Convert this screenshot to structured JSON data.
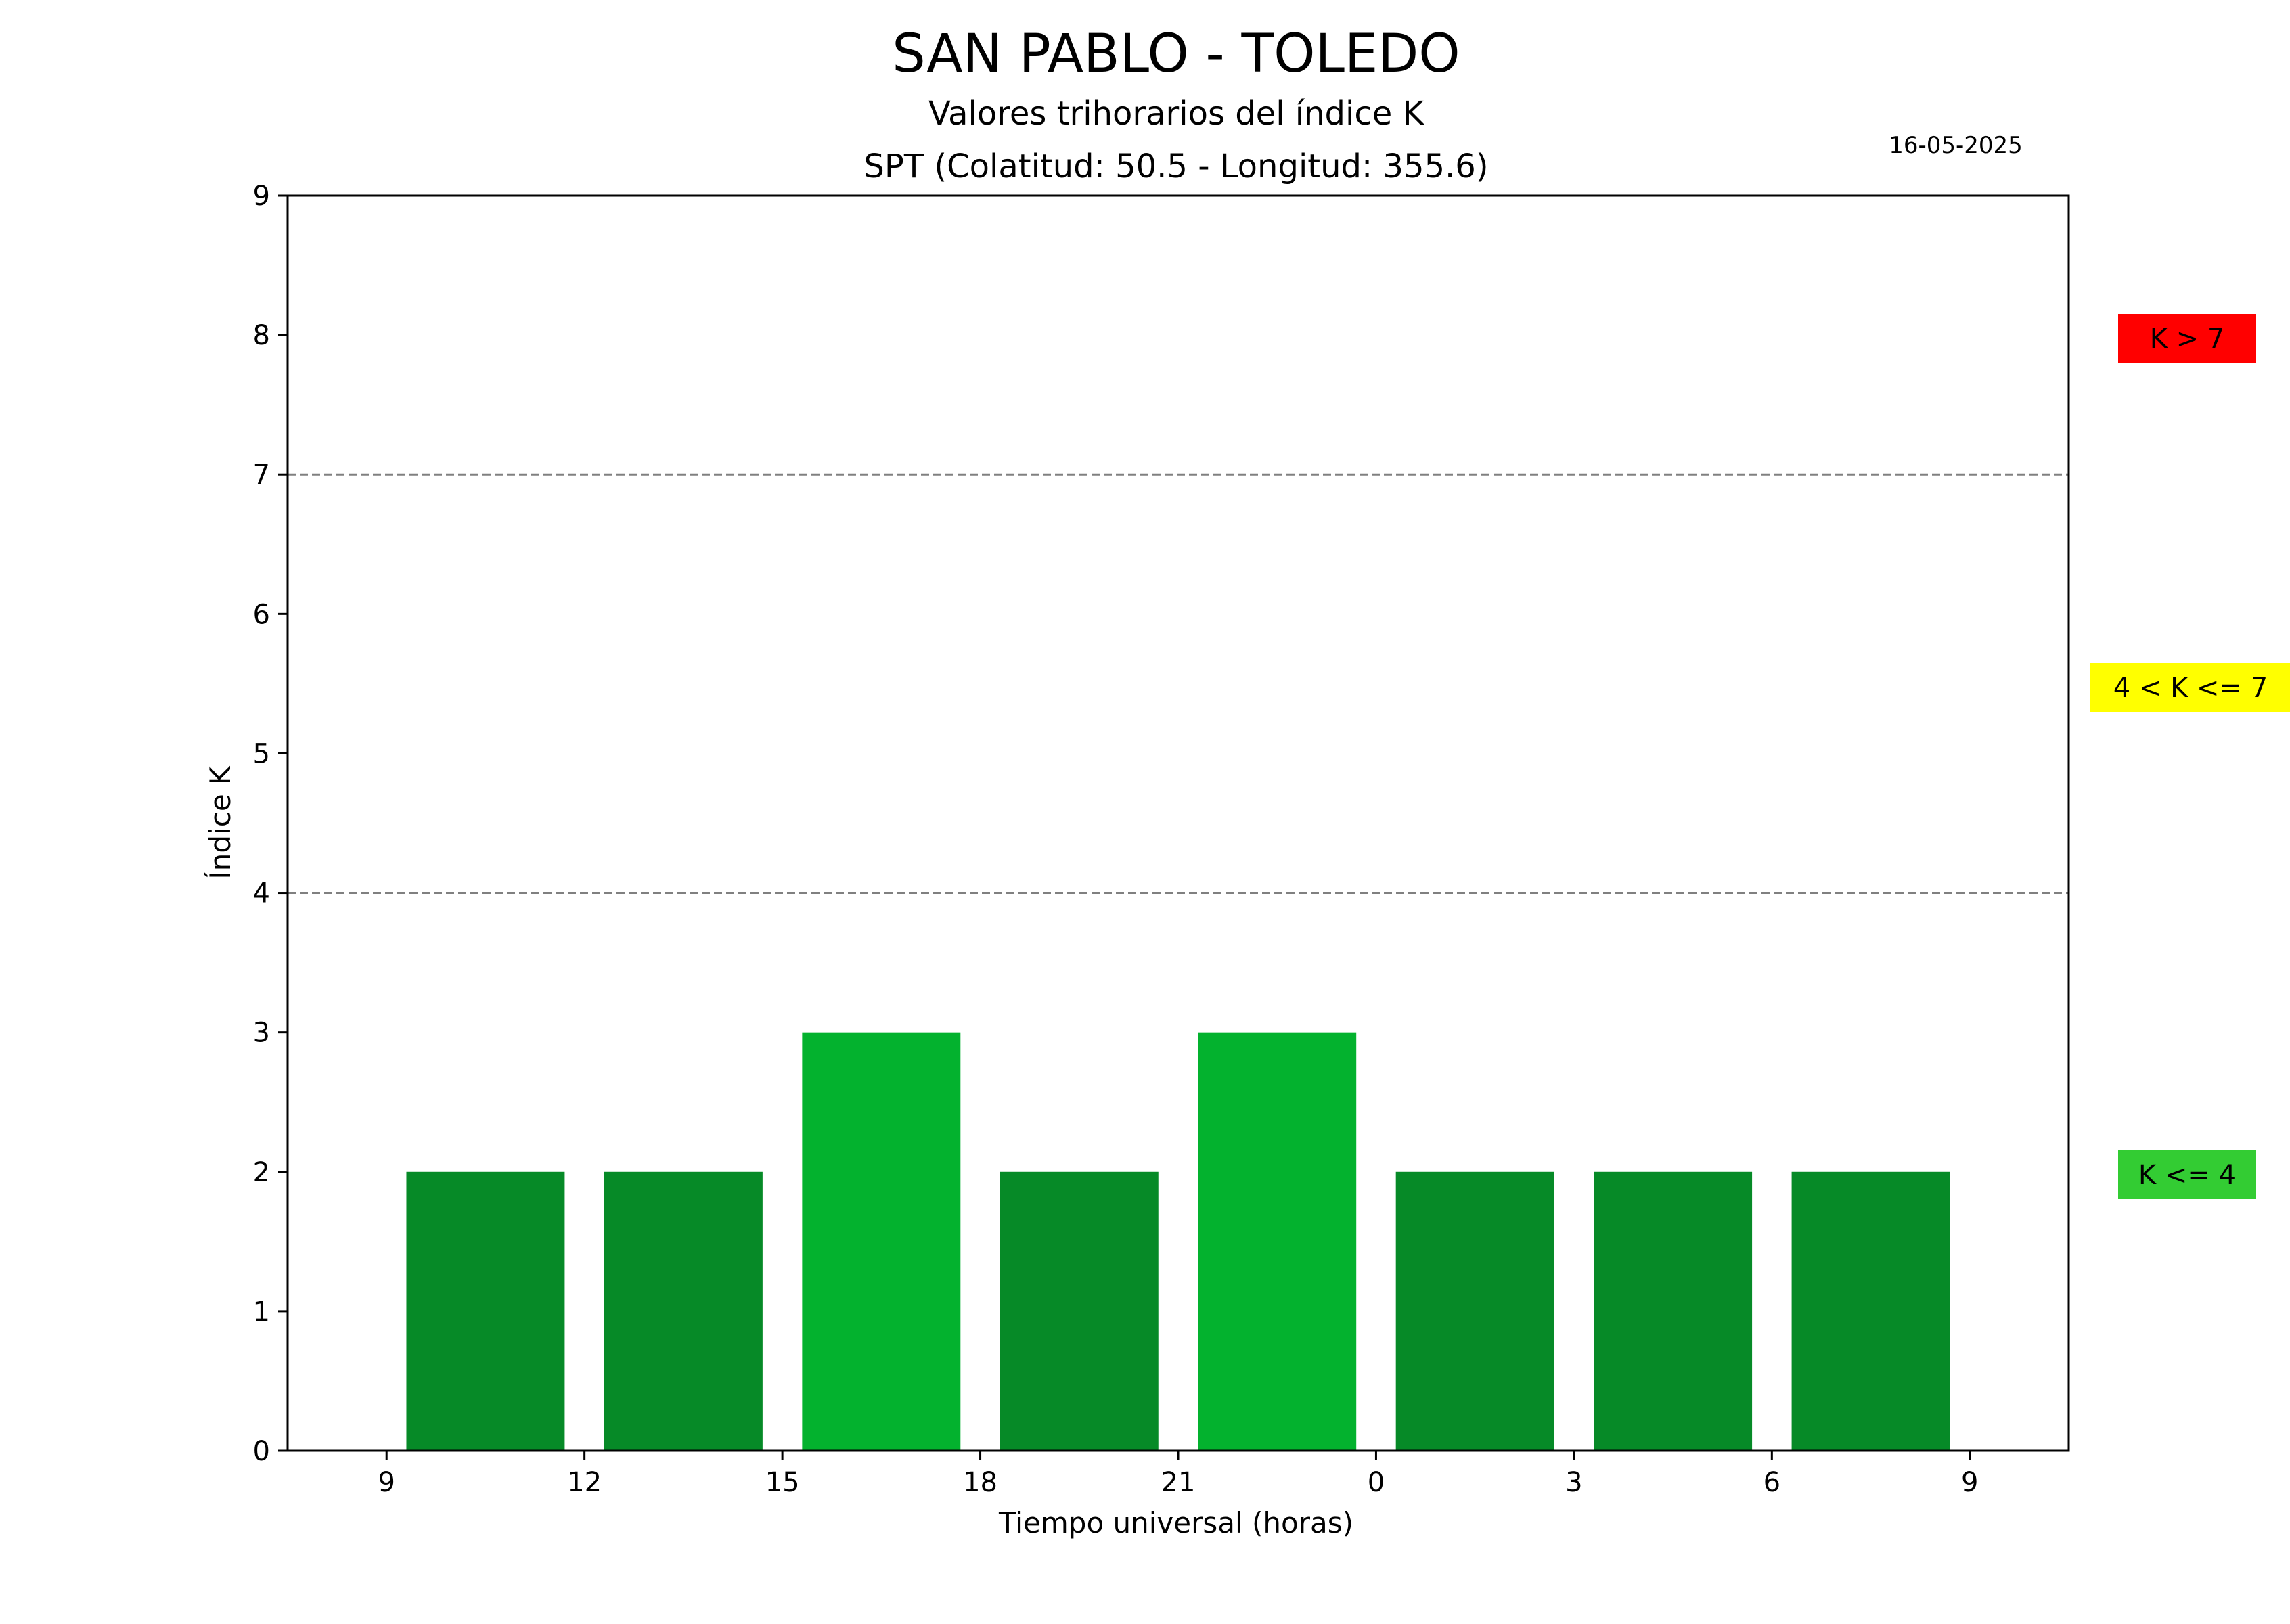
{
  "title": "SAN PABLO - TOLEDO",
  "subtitle1": "Valores trihorarios del índice K",
  "subtitle2": "SPT (Colatitud: 50.5 - Longitud: 355.6)",
  "date": "16-05-2025",
  "chart_data": {
    "type": "bar",
    "xlabel": "Tiempo universal (horas)",
    "ylabel": "Índice K",
    "ylim": [
      0,
      9
    ],
    "yticks": [
      "0",
      "1",
      "2",
      "3",
      "4",
      "5",
      "6",
      "7",
      "8",
      "9"
    ],
    "xticks": [
      "9",
      "12",
      "15",
      "18",
      "21",
      "0",
      "3",
      "6",
      "9"
    ],
    "thresholds": [
      4,
      7
    ],
    "grid": false,
    "categories": [
      "9-12",
      "12-15",
      "15-18",
      "18-21",
      "21-0",
      "0-3",
      "3-6",
      "6-9"
    ],
    "values": [
      2,
      2,
      3,
      2,
      3,
      2,
      2,
      2
    ],
    "bar_colors": [
      "#068a27",
      "#068a27",
      "#03b22e",
      "#068a27",
      "#03b22e",
      "#068a27",
      "#068a27",
      "#068a27"
    ],
    "legend": [
      {
        "label": "K > 7",
        "color": "#ff0000"
      },
      {
        "label": "4 < K <= 7",
        "color": "#ffff00"
      },
      {
        "label": "K <= 4",
        "color": "#33cc33"
      }
    ]
  }
}
